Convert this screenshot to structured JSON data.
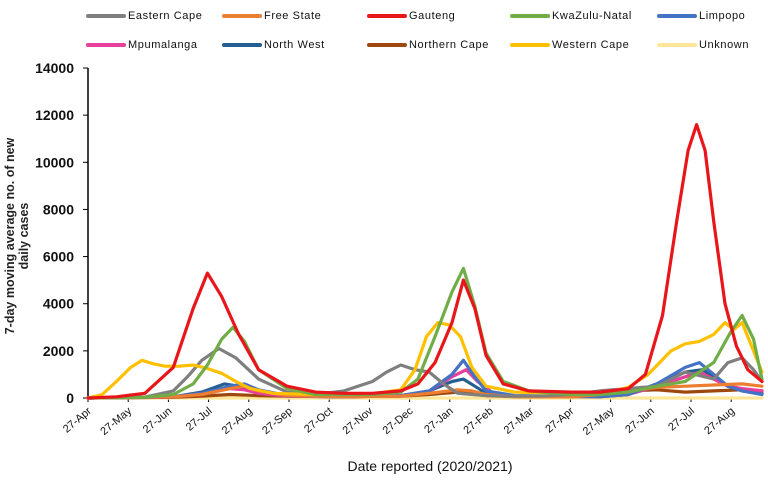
{
  "chart_data": {
    "type": "line",
    "title": "",
    "xlabel": "Date reported (2020/2021)",
    "ylabel": "7-day moving average no. of new daily cases",
    "ylim": [
      0,
      14000
    ],
    "yticks": [
      "0",
      "2000",
      "4000",
      "6000",
      "8000",
      "10000",
      "12000",
      "14000"
    ],
    "xticks": [
      "27-Apr",
      "27-May",
      "27-Jun",
      "27-Jul",
      "27-Aug",
      "27-Sep",
      "27-Oct",
      "27-Nov",
      "27-Dec",
      "27-Jan",
      "27-Feb",
      "27-Mar",
      "27-Apr",
      "27-May",
      "27-Jun",
      "27-Jul",
      "27-Aug"
    ],
    "legend_position": "top",
    "series": [
      {
        "name": "Eastern Cape",
        "color": "#7f7f7f",
        "points": [
          [
            0,
            0
          ],
          [
            2,
            40
          ],
          [
            3,
            300
          ],
          [
            3.5,
            900
          ],
          [
            4,
            1600
          ],
          [
            4.6,
            2100
          ],
          [
            5.2,
            1700
          ],
          [
            6,
            800
          ],
          [
            7,
            250
          ],
          [
            8,
            150
          ],
          [
            9,
            300
          ],
          [
            10,
            700
          ],
          [
            10.5,
            1100
          ],
          [
            11,
            1400
          ],
          [
            11.5,
            1200
          ],
          [
            12,
            1100
          ],
          [
            12.5,
            600
          ],
          [
            13,
            200
          ],
          [
            14,
            100
          ],
          [
            15,
            80
          ],
          [
            16,
            90
          ],
          [
            17,
            150
          ],
          [
            18,
            300
          ],
          [
            19,
            400
          ],
          [
            20,
            500
          ],
          [
            21,
            1100
          ],
          [
            22,
            800
          ],
          [
            22.5,
            1500
          ],
          [
            23,
            1700
          ],
          [
            23.4,
            1200
          ],
          [
            23.7,
            700
          ]
        ]
      },
      {
        "name": "Free State",
        "color": "#ed7d31",
        "points": [
          [
            0,
            0
          ],
          [
            3,
            50
          ],
          [
            4,
            150
          ],
          [
            5,
            400
          ],
          [
            5.5,
            500
          ],
          [
            6,
            300
          ],
          [
            7,
            100
          ],
          [
            9,
            60
          ],
          [
            11,
            80
          ],
          [
            12,
            200
          ],
          [
            13,
            350
          ],
          [
            13.5,
            300
          ],
          [
            14,
            150
          ],
          [
            15,
            60
          ],
          [
            17,
            50
          ],
          [
            18,
            150
          ],
          [
            19,
            300
          ],
          [
            20,
            450
          ],
          [
            21,
            500
          ],
          [
            22,
            550
          ],
          [
            23,
            600
          ],
          [
            23.7,
            500
          ]
        ]
      },
      {
        "name": "Gauteng",
        "color": "#e8161b",
        "points": [
          [
            0,
            0
          ],
          [
            1,
            50
          ],
          [
            2,
            200
          ],
          [
            3,
            1300
          ],
          [
            3.7,
            3800
          ],
          [
            4.2,
            5300
          ],
          [
            4.7,
            4300
          ],
          [
            5.3,
            2700
          ],
          [
            6,
            1200
          ],
          [
            7,
            500
          ],
          [
            8,
            250
          ],
          [
            9,
            200
          ],
          [
            10,
            200
          ],
          [
            11,
            300
          ],
          [
            11.6,
            600
          ],
          [
            12.2,
            1500
          ],
          [
            12.8,
            3200
          ],
          [
            13.2,
            5000
          ],
          [
            13.6,
            3800
          ],
          [
            14,
            1800
          ],
          [
            14.6,
            600
          ],
          [
            15.5,
            300
          ],
          [
            17,
            250
          ],
          [
            18,
            250
          ],
          [
            19,
            400
          ],
          [
            19.6,
            1000
          ],
          [
            20.2,
            3500
          ],
          [
            20.7,
            7500
          ],
          [
            21.1,
            10500
          ],
          [
            21.4,
            11600
          ],
          [
            21.7,
            10500
          ],
          [
            22,
            7500
          ],
          [
            22.4,
            4000
          ],
          [
            22.8,
            2200
          ],
          [
            23.2,
            1200
          ],
          [
            23.7,
            700
          ]
        ]
      },
      {
        "name": "KwaZulu-Natal",
        "color": "#70ad47",
        "points": [
          [
            0,
            0
          ],
          [
            2,
            30
          ],
          [
            3,
            150
          ],
          [
            3.7,
            600
          ],
          [
            4.2,
            1400
          ],
          [
            4.7,
            2500
          ],
          [
            5.1,
            3000
          ],
          [
            5.5,
            2400
          ],
          [
            6,
            1200
          ],
          [
            7,
            400
          ],
          [
            8,
            150
          ],
          [
            10,
            150
          ],
          [
            11,
            250
          ],
          [
            11.6,
            800
          ],
          [
            12.2,
            2600
          ],
          [
            12.8,
            4500
          ],
          [
            13.2,
            5500
          ],
          [
            13.6,
            3900
          ],
          [
            14,
            1900
          ],
          [
            14.6,
            700
          ],
          [
            15.5,
            300
          ],
          [
            17,
            150
          ],
          [
            18,
            150
          ],
          [
            19,
            250
          ],
          [
            20,
            500
          ],
          [
            21,
            700
          ],
          [
            22,
            1500
          ],
          [
            22.6,
            2800
          ],
          [
            23,
            3500
          ],
          [
            23.4,
            2500
          ],
          [
            23.7,
            800
          ]
        ]
      },
      {
        "name": "Limpopo",
        "color": "#4472c4",
        "points": [
          [
            0,
            0
          ],
          [
            3,
            50
          ],
          [
            4,
            200
          ],
          [
            5,
            500
          ],
          [
            5.5,
            600
          ],
          [
            6,
            350
          ],
          [
            7,
            100
          ],
          [
            9,
            50
          ],
          [
            11,
            100
          ],
          [
            12,
            300
          ],
          [
            12.8,
            1000
          ],
          [
            13.2,
            1600
          ],
          [
            13.6,
            900
          ],
          [
            14,
            300
          ],
          [
            15,
            100
          ],
          [
            18,
            50
          ],
          [
            19,
            150
          ],
          [
            20,
            600
          ],
          [
            21,
            1300
          ],
          [
            21.5,
            1500
          ],
          [
            22,
            1000
          ],
          [
            22.5,
            500
          ],
          [
            23,
            300
          ],
          [
            23.7,
            150
          ]
        ]
      },
      {
        "name": "Mpumalanga",
        "color": "#e83e9c",
        "points": [
          [
            0,
            0
          ],
          [
            3,
            40
          ],
          [
            4,
            200
          ],
          [
            5,
            400
          ],
          [
            5.5,
            350
          ],
          [
            6,
            200
          ],
          [
            7,
            80
          ],
          [
            9,
            50
          ],
          [
            11,
            80
          ],
          [
            12,
            300
          ],
          [
            12.8,
            900
          ],
          [
            13.3,
            1200
          ],
          [
            13.7,
            700
          ],
          [
            14.2,
            250
          ],
          [
            15,
            80
          ],
          [
            18,
            60
          ],
          [
            19,
            150
          ],
          [
            20,
            500
          ],
          [
            21,
            900
          ],
          [
            21.5,
            1100
          ],
          [
            22,
            800
          ],
          [
            22.5,
            500
          ],
          [
            23,
            400
          ],
          [
            23.7,
            300
          ]
        ]
      },
      {
        "name": "North West",
        "color": "#255e91",
        "points": [
          [
            0,
            0
          ],
          [
            3,
            50
          ],
          [
            4,
            250
          ],
          [
            4.8,
            600
          ],
          [
            5.3,
            500
          ],
          [
            6,
            250
          ],
          [
            7,
            80
          ],
          [
            9,
            50
          ],
          [
            11,
            100
          ],
          [
            12,
            300
          ],
          [
            12.8,
            700
          ],
          [
            13.2,
            800
          ],
          [
            13.6,
            500
          ],
          [
            14,
            200
          ],
          [
            15,
            80
          ],
          [
            18,
            60
          ],
          [
            19,
            150
          ],
          [
            20,
            600
          ],
          [
            21,
            1100
          ],
          [
            21.6,
            1200
          ],
          [
            22,
            900
          ],
          [
            22.5,
            500
          ],
          [
            23,
            300
          ],
          [
            23.7,
            200
          ]
        ]
      },
      {
        "name": "Northern Cape",
        "color": "#9e480e",
        "points": [
          [
            0,
            0
          ],
          [
            3,
            30
          ],
          [
            4,
            80
          ],
          [
            5,
            150
          ],
          [
            6,
            100
          ],
          [
            7,
            80
          ],
          [
            9,
            60
          ],
          [
            11,
            80
          ],
          [
            12,
            150
          ],
          [
            13,
            250
          ],
          [
            13.5,
            200
          ],
          [
            14,
            100
          ],
          [
            15,
            60
          ],
          [
            17,
            60
          ],
          [
            18,
            150
          ],
          [
            19,
            300
          ],
          [
            20,
            350
          ],
          [
            21,
            250
          ],
          [
            22,
            300
          ],
          [
            23,
            350
          ],
          [
            23.7,
            300
          ]
        ]
      },
      {
        "name": "Western Cape",
        "color": "#ffc000",
        "points": [
          [
            0,
            0
          ],
          [
            0.5,
            150
          ],
          [
            1,
            700
          ],
          [
            1.5,
            1300
          ],
          [
            1.9,
            1600
          ],
          [
            2.3,
            1450
          ],
          [
            2.7,
            1350
          ],
          [
            3.2,
            1350
          ],
          [
            3.7,
            1400
          ],
          [
            4.2,
            1250
          ],
          [
            4.7,
            1050
          ],
          [
            5.2,
            700
          ],
          [
            5.7,
            400
          ],
          [
            6.5,
            200
          ],
          [
            8,
            150
          ],
          [
            10,
            180
          ],
          [
            11,
            350
          ],
          [
            11.5,
            1200
          ],
          [
            11.9,
            2600
          ],
          [
            12.3,
            3200
          ],
          [
            12.7,
            3100
          ],
          [
            13.1,
            2600
          ],
          [
            13.5,
            1300
          ],
          [
            14,
            500
          ],
          [
            15,
            250
          ],
          [
            17,
            200
          ],
          [
            18,
            180
          ],
          [
            19,
            450
          ],
          [
            19.7,
            1000
          ],
          [
            20.5,
            2000
          ],
          [
            21,
            2300
          ],
          [
            21.5,
            2400
          ],
          [
            22,
            2700
          ],
          [
            22.4,
            3200
          ],
          [
            22.7,
            2900
          ],
          [
            23,
            3200
          ],
          [
            23.4,
            2000
          ],
          [
            23.7,
            1100
          ]
        ]
      },
      {
        "name": "Unknown",
        "color": "#ffe699",
        "points": [
          [
            0,
            0
          ],
          [
            23.7,
            0
          ]
        ]
      }
    ]
  }
}
